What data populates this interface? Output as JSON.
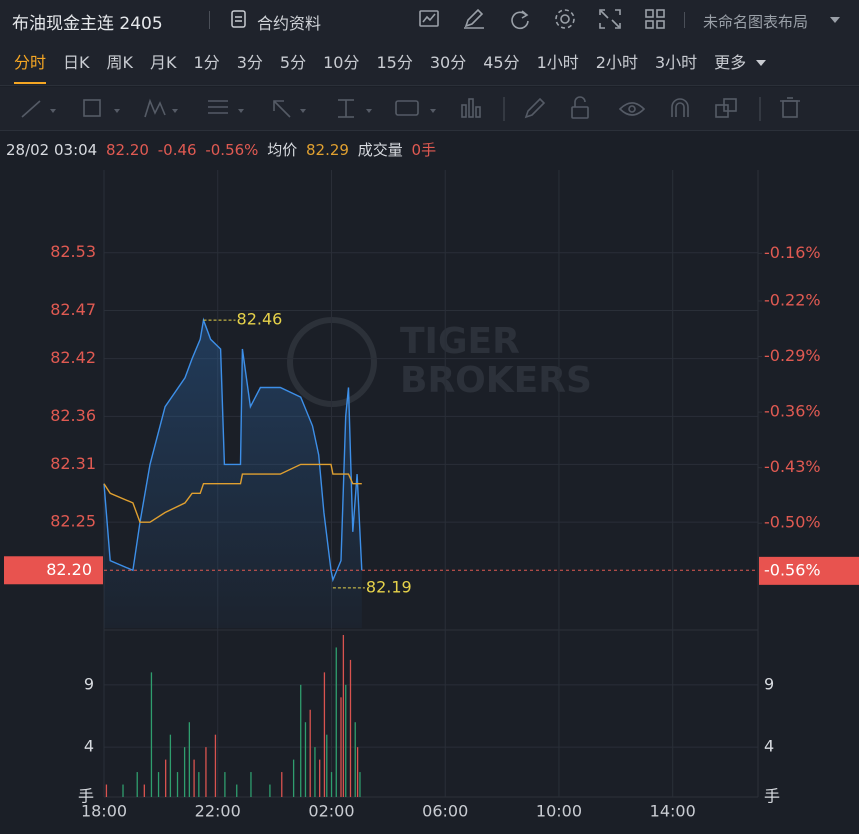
{
  "header": {
    "title": "布油现金主连 2405",
    "contract_info": "合约资料",
    "layout_name": "未命名图表布局"
  },
  "tabs": {
    "items": [
      "分时",
      "日K",
      "周K",
      "月K",
      "1分",
      "3分",
      "5分",
      "10分",
      "15分",
      "30分",
      "45分",
      "1小时",
      "2小时",
      "3小时",
      "更多"
    ],
    "active": 0
  },
  "info": {
    "datetime": "28/02 03:04",
    "price": "82.20",
    "change": "-0.46",
    "change_pct": "-0.56%",
    "avg_label": "均价",
    "avg": "82.29",
    "volume_label": "成交量",
    "volume": "0手"
  },
  "watermark": [
    "TIGER",
    "BROKERS"
  ],
  "chart_data": [
    {
      "type": "line",
      "x": [
        "18:00",
        "18:13",
        "19:01",
        "19:16",
        "19:37",
        "20:09",
        "20:51",
        "21:06",
        "21:23",
        "21:30",
        "21:45",
        "22:06",
        "22:14",
        "22:48",
        "22:52",
        "23:09",
        "23:30",
        "00:12",
        "00:55",
        "01:20",
        "01:33",
        "01:44",
        "01:59",
        "02:03",
        "02:20",
        "02:30",
        "02:36",
        "02:45",
        "02:54",
        "03:04"
      ],
      "series": [
        {
          "color": "#3d8fe8",
          "area": true,
          "values": [
            82.29,
            82.21,
            82.2,
            82.25,
            82.31,
            82.37,
            82.4,
            82.42,
            82.44,
            82.46,
            82.44,
            82.43,
            82.31,
            82.31,
            82.43,
            82.37,
            82.39,
            82.39,
            82.38,
            82.35,
            82.32,
            82.26,
            82.2,
            82.19,
            82.21,
            82.36,
            82.39,
            82.24,
            82.3,
            82.2
          ]
        },
        {
          "color": "#e0a030",
          "area": false,
          "values": [
            82.29,
            82.28,
            82.27,
            82.25,
            82.25,
            82.26,
            82.27,
            82.28,
            82.28,
            82.29,
            82.29,
            82.29,
            82.29,
            82.29,
            82.3,
            82.3,
            82.3,
            82.3,
            82.31,
            82.31,
            82.31,
            82.31,
            82.31,
            82.3,
            82.3,
            82.3,
            82.3,
            82.29,
            82.29,
            82.29
          ]
        }
      ],
      "xlim": [
        "18:00",
        "17:00"
      ],
      "ylim": [
        82.14,
        82.616
      ],
      "yticks": [
        82.53,
        82.47,
        82.42,
        82.36,
        82.31,
        82.25
      ],
      "y2lim": [
        -0.632,
        -0.055
      ],
      "y2ticks": [
        {
          "value": -0.16,
          "label": "-0.16%"
        },
        {
          "value": -0.22,
          "label": "-0.22%"
        },
        {
          "value": -0.29,
          "label": "-0.29%"
        },
        {
          "value": -0.36,
          "label": "-0.36%"
        },
        {
          "value": -0.43,
          "label": "-0.43%"
        },
        {
          "value": -0.5,
          "label": "-0.50%"
        }
      ],
      "last_price": {
        "value": 82.2,
        "label": "82.20"
      },
      "last_pct": {
        "value": -0.56,
        "label": "-0.56%"
      },
      "high": {
        "x": "21:30",
        "value": 82.46
      },
      "low": {
        "x": "02:03",
        "value": 82.19
      },
      "tick_color": "#e05a52",
      "grid": true
    },
    {
      "type": "bar",
      "x": [
        "18:05",
        "18:40",
        "19:10",
        "19:25",
        "19:40",
        "19:55",
        "20:10",
        "20:20",
        "20:35",
        "20:50",
        "21:00",
        "21:10",
        "21:20",
        "21:35",
        "21:55",
        "22:15",
        "22:40",
        "23:10",
        "23:50",
        "00:15",
        "00:40",
        "00:55",
        "01:05",
        "01:15",
        "01:25",
        "01:35",
        "01:45",
        "01:50",
        "02:00",
        "02:10",
        "02:20",
        "02:25",
        "02:30",
        "02:40",
        "02:50",
        "02:55",
        "03:00"
      ],
      "values": [
        1,
        1,
        2,
        1,
        10,
        2,
        3,
        5,
        2,
        4,
        6,
        3,
        2,
        4,
        5,
        2,
        1,
        2,
        1,
        2,
        3,
        9,
        6,
        7,
        4,
        3,
        10,
        5,
        2,
        12,
        8,
        13,
        9,
        11,
        6,
        4,
        2
      ],
      "colors": [
        "#d9534f",
        "#2f9e6e",
        "#2f9e6e",
        "#d9534f",
        "#2f9e6e",
        "#2f9e6e",
        "#d9534f",
        "#2f9e6e",
        "#2f9e6e",
        "#2f9e6e",
        "#2f9e6e",
        "#d9534f",
        "#2f9e6e",
        "#d9534f",
        "#d9534f",
        "#2f9e6e",
        "#2f9e6e",
        "#2f9e6e",
        "#2f9e6e",
        "#d9534f",
        "#2f9e6e",
        "#2f9e6e",
        "#2f9e6e",
        "#d9534f",
        "#2f9e6e",
        "#d9534f",
        "#d9534f",
        "#2f9e6e",
        "#2f9e6e",
        "#2f9e6e",
        "#d9534f",
        "#d9534f",
        "#2f9e6e",
        "#d9534f",
        "#2f9e6e",
        "#d9534f",
        "#2f9e6e"
      ],
      "ylim": [
        0,
        13.4
      ],
      "yticks": [
        9,
        4
      ],
      "unit": "手",
      "xticks": [
        "18:00",
        "22:00",
        "02:00",
        "06:00",
        "10:00",
        "14:00"
      ],
      "grid": true
    }
  ]
}
